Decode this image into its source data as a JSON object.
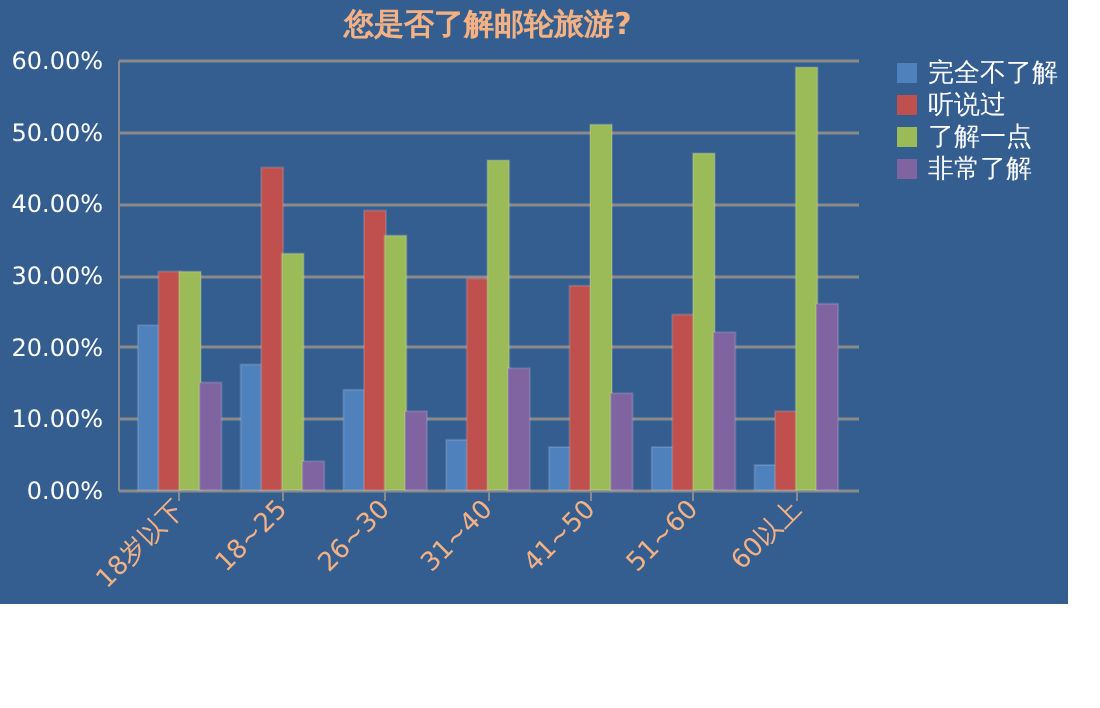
{
  "chart_data": {
    "type": "bar",
    "title": "您是否了解邮轮旅游?",
    "categories": [
      "18岁以下",
      "18~25",
      "26~30",
      "31~40",
      "41~50",
      "51~60",
      "60以上"
    ],
    "series": [
      {
        "name": "完全不了解",
        "color": "#4f81bd",
        "values": [
          23,
          17.5,
          14,
          7,
          6,
          6,
          3.5
        ]
      },
      {
        "name": "听说过",
        "color": "#c0504d",
        "values": [
          30.5,
          45,
          39,
          29.5,
          28.5,
          24.5,
          11
        ]
      },
      {
        "name": "了解一点",
        "color": "#9bbb59",
        "values": [
          30.5,
          33,
          35.5,
          46,
          51,
          47,
          59
        ]
      },
      {
        "name": "非常了解",
        "color": "#8064a2",
        "values": [
          15,
          4,
          11,
          17,
          13.5,
          22,
          26
        ]
      }
    ],
    "ylim": [
      0,
      60
    ],
    "yticks": [
      {
        "value": 0,
        "label": "0.00%"
      },
      {
        "value": 10,
        "label": "10.00%"
      },
      {
        "value": 20,
        "label": "20.00%"
      },
      {
        "value": 30,
        "label": "30.00%"
      },
      {
        "value": 40,
        "label": "40.00%"
      },
      {
        "value": 50,
        "label": "50.00%"
      },
      {
        "value": 60,
        "label": "60.00%"
      }
    ],
    "grid": "y",
    "legend": "right"
  }
}
